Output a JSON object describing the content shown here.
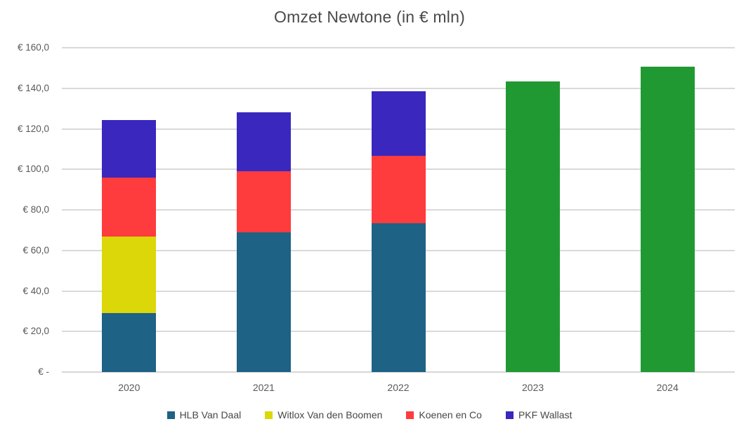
{
  "chart_data": {
    "type": "bar",
    "stacked": true,
    "title": "Omzet Newtone (in € mln)",
    "categories": [
      "2020",
      "2021",
      "2022",
      "2023",
      "2024"
    ],
    "series": [
      {
        "name": "HLB Van Daal",
        "color": "#1E6286",
        "in_legend": true,
        "values": [
          29,
          69,
          73.5,
          0,
          0
        ]
      },
      {
        "name": "Witlox Van den Boomen",
        "color": "#DBD708",
        "in_legend": true,
        "values": [
          38,
          0,
          0,
          0,
          0
        ]
      },
      {
        "name": "Koenen en Co",
        "color": "#FE3B3D",
        "in_legend": true,
        "values": [
          29,
          30,
          33,
          0,
          0
        ]
      },
      {
        "name": "PKF Wallast",
        "color": "#3A27BE",
        "in_legend": true,
        "values": [
          28.5,
          29,
          32,
          0,
          0
        ]
      },
      {
        "name": "Newtone",
        "color": "#219933",
        "in_legend": false,
        "values": [
          0,
          0,
          0,
          143.5,
          150.5
        ]
      }
    ],
    "totals": [
      124.5,
      128,
      138.5,
      143.5,
      150.5
    ],
    "ylim": [
      0,
      160
    ],
    "y_ticks": [
      {
        "label": "€ 160,0",
        "value": 160
      },
      {
        "label": "€ 140,0",
        "value": 140
      },
      {
        "label": "€ 120,0",
        "value": 120
      },
      {
        "label": "€ 100,0",
        "value": 100
      },
      {
        "label": "€ 80,0",
        "value": 80
      },
      {
        "label": "€ 60,0",
        "value": 60
      },
      {
        "label": "€ 40,0",
        "value": 40
      },
      {
        "label": "€ 20,0",
        "value": 20
      },
      {
        "label": "€ -",
        "value": 0
      }
    ],
    "grid": true,
    "legend_position": "bottom"
  },
  "colors": {
    "background": "#FFFFFF",
    "gridline": "#D9D9D9",
    "axis_text": "#595959",
    "title_text": "#4A4A4A"
  }
}
